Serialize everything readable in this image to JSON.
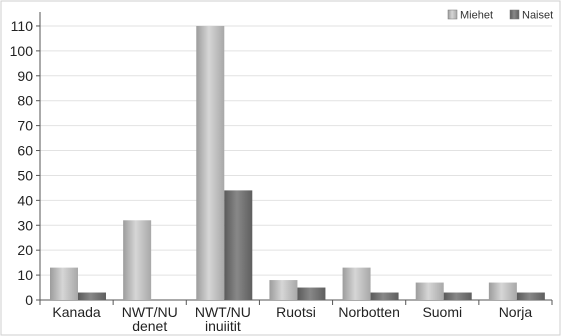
{
  "chart_data": {
    "type": "bar",
    "categories": [
      [
        "Kanada"
      ],
      [
        "NWT/NU",
        "denet"
      ],
      [
        "NWT/NU",
        "inuiitit"
      ],
      [
        "Ruotsi"
      ],
      [
        "Norbotten"
      ],
      [
        "Suomi"
      ],
      [
        "Norja"
      ]
    ],
    "series": [
      {
        "name": "Miehet",
        "values": [
          13,
          32,
          110,
          8,
          13,
          7,
          7
        ],
        "color": "#b9b9b9"
      },
      {
        "name": "Naiset",
        "values": [
          3,
          null,
          44,
          5,
          3,
          3,
          3
        ],
        "color": "#6f6f6f"
      }
    ],
    "ylim": [
      0,
      114
    ],
    "yticks": [
      0,
      10,
      20,
      30,
      40,
      50,
      60,
      70,
      80,
      90,
      100,
      110
    ],
    "grid": true,
    "legend_position": "top-right",
    "xlabel": "",
    "ylabel": "",
    "title": ""
  }
}
